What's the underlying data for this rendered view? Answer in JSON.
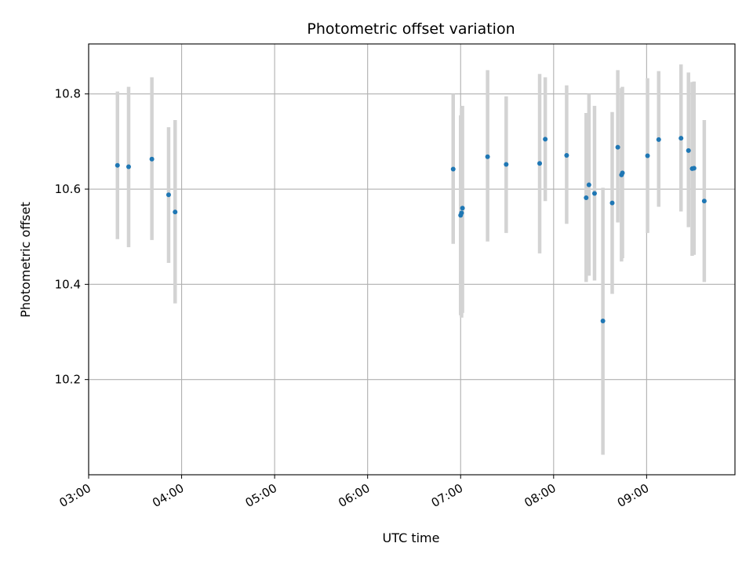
{
  "chart_data": {
    "type": "scatter",
    "title": "Photometric offset variation",
    "xlabel": "UTC time",
    "ylabel": "Photometric offset",
    "x_unit": "hours UTC",
    "xlim": [
      3.0,
      9.95
    ],
    "ylim": [
      10.0,
      10.905
    ],
    "x_ticks": [
      {
        "value": 3,
        "label": "03:00"
      },
      {
        "value": 4,
        "label": "04:00"
      },
      {
        "value": 5,
        "label": "05:00"
      },
      {
        "value": 6,
        "label": "06:00"
      },
      {
        "value": 7,
        "label": "07:00"
      },
      {
        "value": 8,
        "label": "08:00"
      },
      {
        "value": 9,
        "label": "09:00"
      }
    ],
    "y_ticks": [
      {
        "value": 10.2,
        "label": "10.2"
      },
      {
        "value": 10.4,
        "label": "10.4"
      },
      {
        "value": 10.6,
        "label": "10.6"
      },
      {
        "value": 10.8,
        "label": "10.8"
      }
    ],
    "grid": true,
    "colors": {
      "points": "#1f77b4",
      "errorbars": "#d3d3d3"
    },
    "points": [
      {
        "x": 3.31,
        "y": 10.65,
        "lo": 10.495,
        "hi": 10.805
      },
      {
        "x": 3.43,
        "y": 10.647,
        "lo": 10.478,
        "hi": 10.815
      },
      {
        "x": 3.68,
        "y": 10.663,
        "lo": 10.493,
        "hi": 10.835
      },
      {
        "x": 3.86,
        "y": 10.588,
        "lo": 10.445,
        "hi": 10.73
      },
      {
        "x": 3.93,
        "y": 10.552,
        "lo": 10.36,
        "hi": 10.745
      },
      {
        "x": 6.92,
        "y": 10.642,
        "lo": 10.485,
        "hi": 10.8
      },
      {
        "x": 7.0,
        "y": 10.545,
        "lo": 10.335,
        "hi": 10.755
      },
      {
        "x": 7.01,
        "y": 10.55,
        "lo": 10.33,
        "hi": 10.77
      },
      {
        "x": 7.02,
        "y": 10.56,
        "lo": 10.34,
        "hi": 10.775
      },
      {
        "x": 7.29,
        "y": 10.668,
        "lo": 10.49,
        "hi": 10.85
      },
      {
        "x": 7.49,
        "y": 10.652,
        "lo": 10.508,
        "hi": 10.795
      },
      {
        "x": 7.85,
        "y": 10.654,
        "lo": 10.465,
        "hi": 10.842
      },
      {
        "x": 7.91,
        "y": 10.705,
        "lo": 10.575,
        "hi": 10.835
      },
      {
        "x": 8.14,
        "y": 10.671,
        "lo": 10.527,
        "hi": 10.818
      },
      {
        "x": 8.35,
        "y": 10.582,
        "lo": 10.405,
        "hi": 10.76
      },
      {
        "x": 8.38,
        "y": 10.609,
        "lo": 10.418,
        "hi": 10.8
      },
      {
        "x": 8.44,
        "y": 10.591,
        "lo": 10.408,
        "hi": 10.775
      },
      {
        "x": 8.53,
        "y": 10.323,
        "lo": 10.042,
        "hi": 10.603
      },
      {
        "x": 8.63,
        "y": 10.571,
        "lo": 10.38,
        "hi": 10.762
      },
      {
        "x": 8.69,
        "y": 10.688,
        "lo": 10.53,
        "hi": 10.85
      },
      {
        "x": 8.73,
        "y": 10.63,
        "lo": 10.448,
        "hi": 10.812
      },
      {
        "x": 8.74,
        "y": 10.634,
        "lo": 10.455,
        "hi": 10.815
      },
      {
        "x": 9.01,
        "y": 10.67,
        "lo": 10.508,
        "hi": 10.833
      },
      {
        "x": 9.13,
        "y": 10.704,
        "lo": 10.563,
        "hi": 10.848
      },
      {
        "x": 9.37,
        "y": 10.707,
        "lo": 10.553,
        "hi": 10.862
      },
      {
        "x": 9.45,
        "y": 10.681,
        "lo": 10.52,
        "hi": 10.845
      },
      {
        "x": 9.49,
        "y": 10.643,
        "lo": 10.46,
        "hi": 10.825
      },
      {
        "x": 9.51,
        "y": 10.644,
        "lo": 10.462,
        "hi": 10.826
      },
      {
        "x": 9.62,
        "y": 10.575,
        "lo": 10.405,
        "hi": 10.745
      }
    ]
  }
}
